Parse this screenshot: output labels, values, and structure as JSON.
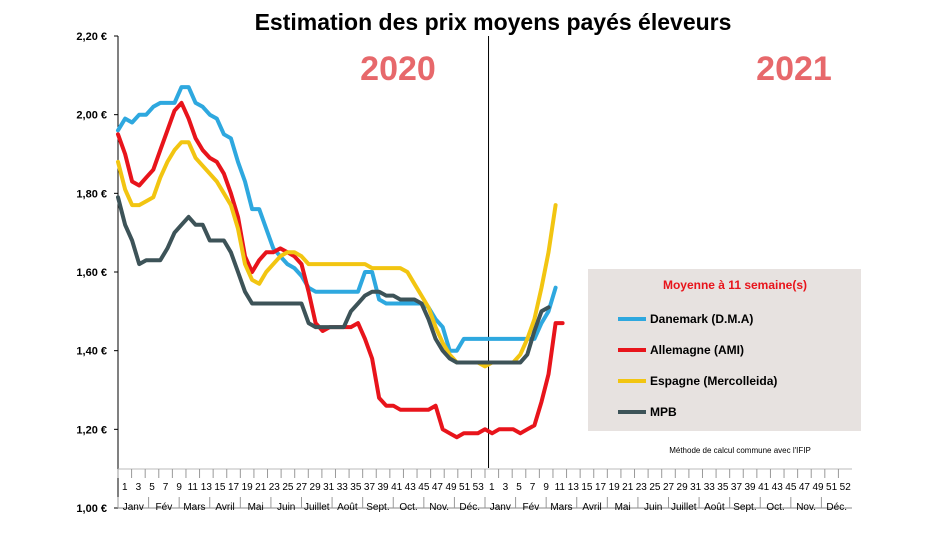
{
  "chart_data": {
    "type": "line",
    "title": "Estimation des prix moyens payés éleveurs",
    "ylim": [
      1.0,
      2.2
    ],
    "yticks": [
      "1,00 €",
      "1,20 €",
      "1,40 €",
      "1,60 €",
      "1,80 €",
      "2,00 €",
      "2,20 €"
    ],
    "ytick_values": [
      1.0,
      1.2,
      1.4,
      1.6,
      1.8,
      2.0,
      2.2
    ],
    "xlim": [
      1,
      105
    ],
    "week_ticks": [
      "1",
      "3",
      "5",
      "7",
      "9",
      "11",
      "13",
      "15",
      "17",
      "19",
      "21",
      "23",
      "25",
      "27",
      "29",
      "31",
      "33",
      "35",
      "37",
      "39",
      "41",
      "43",
      "45",
      "47",
      "49",
      "51",
      "53",
      "1",
      "3",
      "5",
      "7",
      "9",
      "11",
      "13",
      "15",
      "17",
      "19",
      "21",
      "23",
      "25",
      "27",
      "29",
      "31",
      "33",
      "35",
      "37",
      "39",
      "41",
      "43",
      "45",
      "47",
      "49",
      "51",
      "52"
    ],
    "month_ticks": [
      "Janv",
      "Fév",
      "Mars",
      "Avril",
      "Mai",
      "Juin",
      "Juillet",
      "Août",
      "Sept.",
      "Oct.",
      "Nov.",
      "Déc.",
      "Janv",
      "Fév",
      "Mars",
      "Avril",
      "Mai",
      "Juin",
      "Juillet",
      "Août",
      "Sept.",
      "Oct.",
      "Nov.",
      "Déc."
    ],
    "year_labels": [
      "2020",
      "2021"
    ],
    "grid": false,
    "legend_position": "right",
    "legend_title": "Moyenne à  11 semaine(s)",
    "note": "Méthode de calcul commune avec l'IFIP",
    "series": [
      {
        "name": "Danemark (D.M.A)",
        "color": "#2ea8df",
        "points": [
          [
            1,
            1.96
          ],
          [
            2,
            1.99
          ],
          [
            3,
            1.98
          ],
          [
            4,
            2.0
          ],
          [
            5,
            2.0
          ],
          [
            6,
            2.02
          ],
          [
            7,
            2.03
          ],
          [
            8,
            2.03
          ],
          [
            9,
            2.03
          ],
          [
            10,
            2.07
          ],
          [
            11,
            2.07
          ],
          [
            12,
            2.03
          ],
          [
            13,
            2.02
          ],
          [
            14,
            2.0
          ],
          [
            15,
            1.99
          ],
          [
            16,
            1.95
          ],
          [
            17,
            1.94
          ],
          [
            18,
            1.88
          ],
          [
            19,
            1.83
          ],
          [
            20,
            1.76
          ],
          [
            21,
            1.76
          ],
          [
            22,
            1.71
          ],
          [
            23,
            1.66
          ],
          [
            24,
            1.64
          ],
          [
            25,
            1.62
          ],
          [
            26,
            1.61
          ],
          [
            27,
            1.59
          ],
          [
            28,
            1.56
          ],
          [
            29,
            1.55
          ],
          [
            30,
            1.55
          ],
          [
            31,
            1.55
          ],
          [
            32,
            1.55
          ],
          [
            33,
            1.55
          ],
          [
            34,
            1.55
          ],
          [
            35,
            1.55
          ],
          [
            36,
            1.6
          ],
          [
            37,
            1.6
          ],
          [
            38,
            1.53
          ],
          [
            39,
            1.52
          ],
          [
            40,
            1.52
          ],
          [
            41,
            1.52
          ],
          [
            42,
            1.52
          ],
          [
            43,
            1.52
          ],
          [
            44,
            1.52
          ],
          [
            45,
            1.51
          ],
          [
            46,
            1.48
          ],
          [
            47,
            1.46
          ],
          [
            48,
            1.4
          ],
          [
            49,
            1.4
          ],
          [
            50,
            1.43
          ],
          [
            51,
            1.43
          ],
          [
            52,
            1.43
          ],
          [
            53,
            1.43
          ],
          [
            54,
            1.43
          ],
          [
            55,
            1.43
          ],
          [
            56,
            1.43
          ],
          [
            57,
            1.43
          ],
          [
            58,
            1.43
          ],
          [
            59,
            1.43
          ],
          [
            60,
            1.43
          ],
          [
            61,
            1.47
          ],
          [
            62,
            1.5
          ],
          [
            63,
            1.56
          ]
        ]
      },
      {
        "name": "Allemagne (AMI)",
        "color": "#e8141b",
        "points": [
          [
            1,
            1.95
          ],
          [
            2,
            1.9
          ],
          [
            3,
            1.83
          ],
          [
            4,
            1.82
          ],
          [
            5,
            1.84
          ],
          [
            6,
            1.86
          ],
          [
            7,
            1.91
          ],
          [
            8,
            1.96
          ],
          [
            9,
            2.01
          ],
          [
            10,
            2.03
          ],
          [
            11,
            1.99
          ],
          [
            12,
            1.94
          ],
          [
            13,
            1.91
          ],
          [
            14,
            1.89
          ],
          [
            15,
            1.88
          ],
          [
            16,
            1.85
          ],
          [
            17,
            1.8
          ],
          [
            18,
            1.74
          ],
          [
            19,
            1.64
          ],
          [
            20,
            1.6
          ],
          [
            21,
            1.63
          ],
          [
            22,
            1.65
          ],
          [
            23,
            1.65
          ],
          [
            24,
            1.66
          ],
          [
            25,
            1.65
          ],
          [
            26,
            1.64
          ],
          [
            27,
            1.62
          ],
          [
            28,
            1.55
          ],
          [
            29,
            1.47
          ],
          [
            30,
            1.45
          ],
          [
            31,
            1.46
          ],
          [
            32,
            1.46
          ],
          [
            33,
            1.46
          ],
          [
            34,
            1.46
          ],
          [
            35,
            1.47
          ],
          [
            36,
            1.43
          ],
          [
            37,
            1.38
          ],
          [
            38,
            1.28
          ],
          [
            39,
            1.26
          ],
          [
            40,
            1.26
          ],
          [
            41,
            1.25
          ],
          [
            42,
            1.25
          ],
          [
            43,
            1.25
          ],
          [
            44,
            1.25
          ],
          [
            45,
            1.25
          ],
          [
            46,
            1.26
          ],
          [
            47,
            1.2
          ],
          [
            48,
            1.19
          ],
          [
            49,
            1.18
          ],
          [
            50,
            1.19
          ],
          [
            51,
            1.19
          ],
          [
            52,
            1.19
          ],
          [
            53,
            1.2
          ],
          [
            54,
            1.19
          ],
          [
            55,
            1.2
          ],
          [
            56,
            1.2
          ],
          [
            57,
            1.2
          ],
          [
            58,
            1.19
          ],
          [
            59,
            1.2
          ],
          [
            60,
            1.21
          ],
          [
            61,
            1.27
          ],
          [
            62,
            1.34
          ],
          [
            63,
            1.47
          ],
          [
            64,
            1.47
          ]
        ]
      },
      {
        "name": "Espagne (Mercolleida)",
        "color": "#f2c511",
        "points": [
          [
            1,
            1.88
          ],
          [
            2,
            1.81
          ],
          [
            3,
            1.77
          ],
          [
            4,
            1.77
          ],
          [
            5,
            1.78
          ],
          [
            6,
            1.79
          ],
          [
            7,
            1.84
          ],
          [
            8,
            1.88
          ],
          [
            9,
            1.91
          ],
          [
            10,
            1.93
          ],
          [
            11,
            1.93
          ],
          [
            12,
            1.89
          ],
          [
            13,
            1.87
          ],
          [
            14,
            1.85
          ],
          [
            15,
            1.83
          ],
          [
            16,
            1.8
          ],
          [
            17,
            1.77
          ],
          [
            18,
            1.71
          ],
          [
            19,
            1.62
          ],
          [
            20,
            1.58
          ],
          [
            21,
            1.57
          ],
          [
            22,
            1.6
          ],
          [
            23,
            1.62
          ],
          [
            24,
            1.64
          ],
          [
            25,
            1.65
          ],
          [
            26,
            1.65
          ],
          [
            27,
            1.64
          ],
          [
            28,
            1.62
          ],
          [
            29,
            1.62
          ],
          [
            30,
            1.62
          ],
          [
            31,
            1.62
          ],
          [
            32,
            1.62
          ],
          [
            33,
            1.62
          ],
          [
            34,
            1.62
          ],
          [
            35,
            1.62
          ],
          [
            36,
            1.62
          ],
          [
            37,
            1.61
          ],
          [
            38,
            1.61
          ],
          [
            39,
            1.61
          ],
          [
            40,
            1.61
          ],
          [
            41,
            1.61
          ],
          [
            42,
            1.6
          ],
          [
            43,
            1.57
          ],
          [
            44,
            1.54
          ],
          [
            45,
            1.51
          ],
          [
            46,
            1.46
          ],
          [
            47,
            1.42
          ],
          [
            48,
            1.39
          ],
          [
            49,
            1.37
          ],
          [
            50,
            1.37
          ],
          [
            51,
            1.37
          ],
          [
            52,
            1.37
          ],
          [
            53,
            1.36
          ],
          [
            54,
            1.37
          ],
          [
            55,
            1.37
          ],
          [
            56,
            1.37
          ],
          [
            57,
            1.37
          ],
          [
            58,
            1.39
          ],
          [
            59,
            1.43
          ],
          [
            60,
            1.48
          ],
          [
            61,
            1.56
          ],
          [
            62,
            1.65
          ],
          [
            63,
            1.77
          ]
        ]
      },
      {
        "name": "MPB",
        "color": "#3d5358",
        "points": [
          [
            1,
            1.79
          ],
          [
            2,
            1.72
          ],
          [
            3,
            1.68
          ],
          [
            4,
            1.62
          ],
          [
            5,
            1.63
          ],
          [
            6,
            1.63
          ],
          [
            7,
            1.63
          ],
          [
            8,
            1.66
          ],
          [
            9,
            1.7
          ],
          [
            10,
            1.72
          ],
          [
            11,
            1.74
          ],
          [
            12,
            1.72
          ],
          [
            13,
            1.72
          ],
          [
            14,
            1.68
          ],
          [
            15,
            1.68
          ],
          [
            16,
            1.68
          ],
          [
            17,
            1.65
          ],
          [
            18,
            1.6
          ],
          [
            19,
            1.55
          ],
          [
            20,
            1.52
          ],
          [
            21,
            1.52
          ],
          [
            22,
            1.52
          ],
          [
            23,
            1.52
          ],
          [
            24,
            1.52
          ],
          [
            25,
            1.52
          ],
          [
            26,
            1.52
          ],
          [
            27,
            1.52
          ],
          [
            28,
            1.47
          ],
          [
            29,
            1.46
          ],
          [
            30,
            1.46
          ],
          [
            31,
            1.46
          ],
          [
            32,
            1.46
          ],
          [
            33,
            1.46
          ],
          [
            34,
            1.5
          ],
          [
            35,
            1.52
          ],
          [
            36,
            1.54
          ],
          [
            37,
            1.55
          ],
          [
            38,
            1.55
          ],
          [
            39,
            1.54
          ],
          [
            40,
            1.54
          ],
          [
            41,
            1.53
          ],
          [
            42,
            1.53
          ],
          [
            43,
            1.53
          ],
          [
            44,
            1.52
          ],
          [
            45,
            1.48
          ],
          [
            46,
            1.43
          ],
          [
            47,
            1.4
          ],
          [
            48,
            1.38
          ],
          [
            49,
            1.37
          ],
          [
            50,
            1.37
          ],
          [
            51,
            1.37
          ],
          [
            52,
            1.37
          ],
          [
            53,
            1.37
          ],
          [
            54,
            1.37
          ],
          [
            55,
            1.37
          ],
          [
            56,
            1.37
          ],
          [
            57,
            1.37
          ],
          [
            58,
            1.37
          ],
          [
            59,
            1.39
          ],
          [
            60,
            1.45
          ],
          [
            61,
            1.5
          ],
          [
            62,
            1.51
          ]
        ]
      }
    ]
  }
}
